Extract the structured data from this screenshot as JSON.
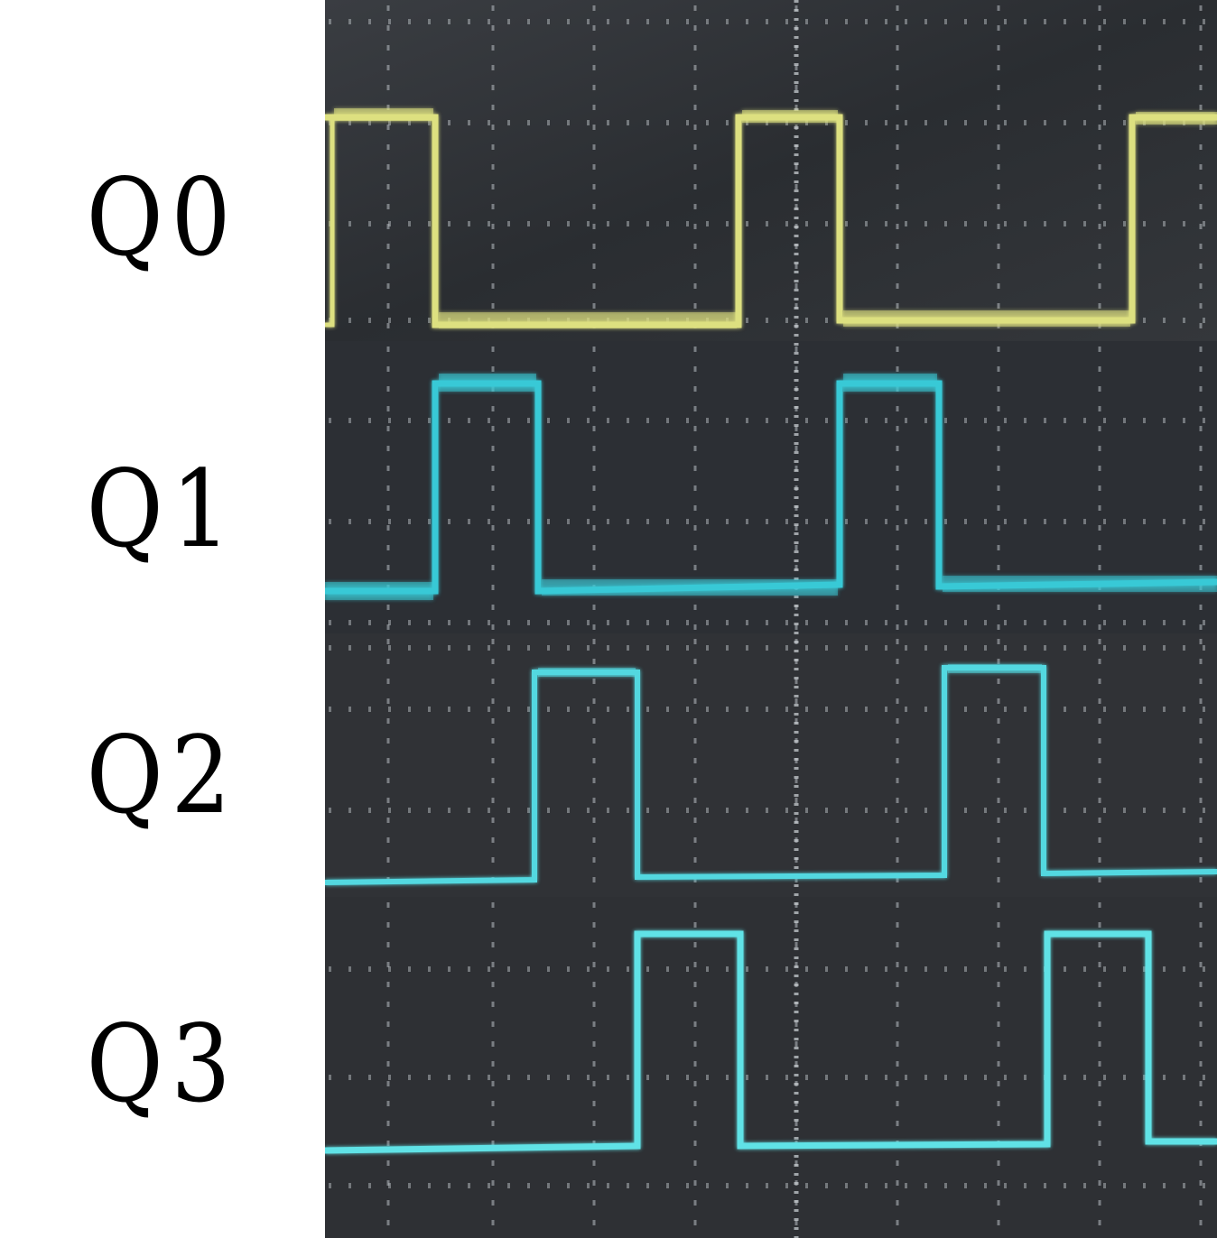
{
  "labels": {
    "q0": "Q0",
    "q1": "Q1",
    "q2": "Q2",
    "q3": "Q3"
  },
  "colors": {
    "page_background": "#ffffff",
    "label_text": "#000000",
    "screen_background": "#2b2e33",
    "grid_dots": "#b9c0c4",
    "q0_trace": "#dde080",
    "q1_trace": "#39c9d6",
    "q2_trace": "#52d8e0",
    "q3_trace": "#60e2e6"
  },
  "chart_data": {
    "type": "line",
    "description_style": "oscilloscope digital waveforms",
    "series": [
      {
        "name": "Q0",
        "transitions": [
          0,
          1,
          0,
          1,
          0,
          1
        ],
        "color": "yellow"
      },
      {
        "name": "Q1",
        "transitions": [
          0,
          1,
          0,
          1,
          0
        ],
        "color": "cyan"
      },
      {
        "name": "Q2",
        "transitions": [
          0,
          1,
          0,
          1,
          0
        ],
        "color": "cyan"
      },
      {
        "name": "Q3",
        "transitions": [
          0,
          1,
          0,
          1,
          0
        ],
        "color": "cyan"
      }
    ]
  }
}
